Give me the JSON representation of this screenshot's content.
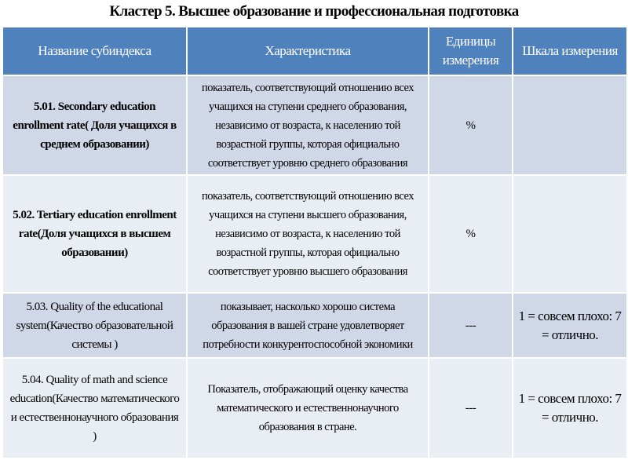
{
  "title": "Кластер 5. Высшее образование и профессиональная подготовка",
  "table": {
    "header": [
      "Название субиндекса",
      "Характеристика",
      "Единицы измерения",
      "Шкала измерения"
    ],
    "rows": [
      {
        "name": "5.01. Secondary education enrollment rate( Доля учащихся в среднем образовании)",
        "description": "показатель, соответствующий отношению всех учащихся на ступени среднего образования, независимо от возраста, к населению той возрастной группы, которая официально соответствует уровню среднего образования",
        "units": "%"
      },
      {
        "name": "5.02. Tertiary education enrollment rate(Доля учащихся в высшем образовании)",
        "description": "показатель, соответствующий отношению всех учащихся на ступени высшего образования, независимо от возраста, к населению той возрастной группы, которая официально соответствует уровню высшего образования",
        "units": "%"
      },
      {
        "name": "5.03. Quality of the educational system(Качество образовательной системы )",
        "description": "показывает, насколько хорошо система образования в вашей стране удовлетворяет потребности конкурентоспособной экономики",
        "units": "---",
        "scale": "1 = совсем плохо: 7 = отлично."
      },
      {
        "name": "5.04. Quality of math and science education(Качество математического и естественнонаучного образования )",
        "description": "Показатель, отображающий оценку качества математического и естественнонаучного образования в стране.",
        "units": "---",
        "scale": "1 = совсем плохо: 7 = отлично."
      }
    ]
  }
}
